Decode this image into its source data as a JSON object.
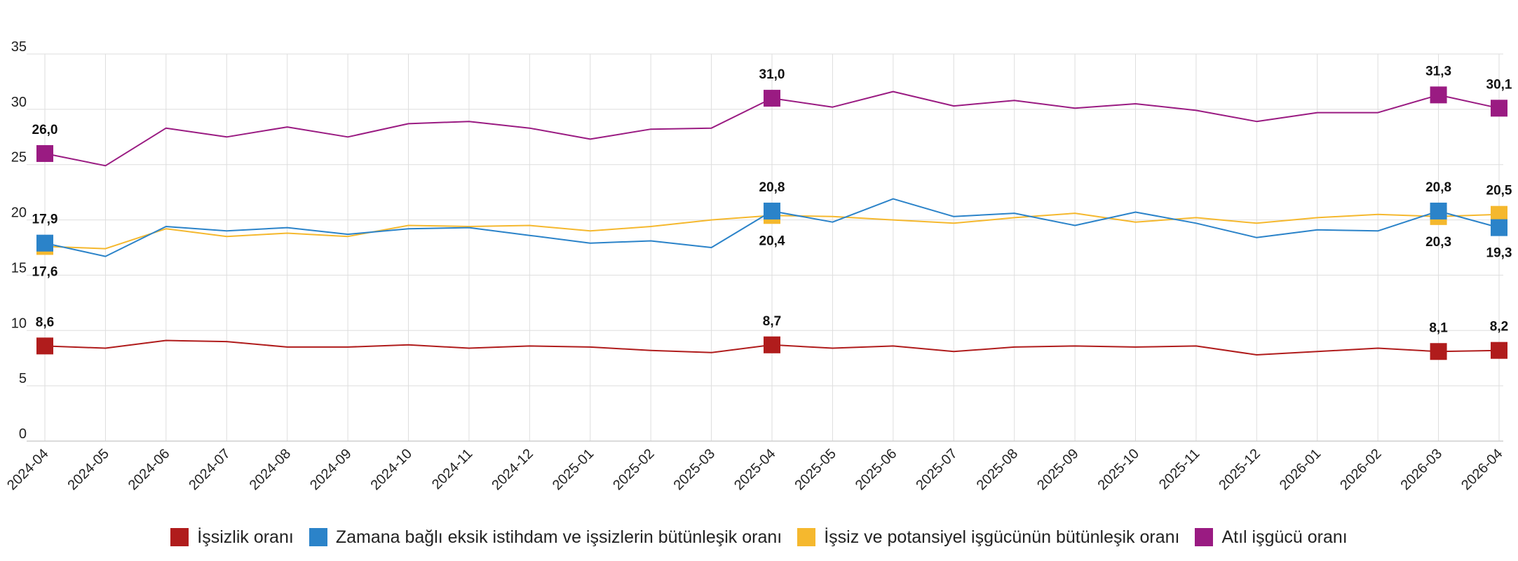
{
  "chart_data": {
    "type": "line",
    "title": "",
    "xlabel": "",
    "ylabel": "",
    "ylim": [
      0,
      35
    ],
    "yticks": [
      "0",
      "5",
      "10",
      "15",
      "20",
      "25",
      "30",
      "35"
    ],
    "grid": true,
    "legend_position": "bottom-center",
    "categories": [
      "2024-04",
      "2024-05",
      "2024-06",
      "2024-07",
      "2024-08",
      "2024-09",
      "2024-10",
      "2024-11",
      "2024-12",
      "2025-01",
      "2025-02",
      "2025-03",
      "2025-04",
      "2025-05",
      "2025-06",
      "2025-07",
      "2025-08",
      "2025-09",
      "2025-10",
      "2025-11",
      "2025-12",
      "2026-01",
      "2026-02",
      "2026-03",
      "2026-04"
    ],
    "series": [
      {
        "key": "unemployment",
        "name": "İşsizlik oranı",
        "color": "#b01c1c",
        "values": [
          8.6,
          8.4,
          9.1,
          9.0,
          8.5,
          8.5,
          8.7,
          8.4,
          8.6,
          8.5,
          8.2,
          8.0,
          8.7,
          8.4,
          8.6,
          8.1,
          8.5,
          8.6,
          8.5,
          8.6,
          7.8,
          8.1,
          8.4,
          8.1,
          8.2
        ],
        "labels": [
          {
            "index": 0,
            "text": "8,6",
            "pos": "above"
          },
          {
            "index": 12,
            "text": "8,7",
            "pos": "above"
          },
          {
            "index": 23,
            "text": "8,1",
            "pos": "above"
          },
          {
            "index": 24,
            "text": "8,2",
            "pos": "above"
          }
        ]
      },
      {
        "key": "time_related",
        "name": "Zamana bağlı eksik istihdam ve işsizlerin bütünleşik oranı",
        "color": "#2b83c9",
        "values": [
          17.9,
          16.7,
          19.4,
          19.0,
          19.3,
          18.7,
          19.2,
          19.3,
          18.6,
          17.9,
          18.1,
          17.5,
          20.8,
          19.8,
          21.9,
          20.3,
          20.6,
          19.5,
          20.7,
          19.7,
          18.4,
          19.1,
          19.0,
          20.8,
          19.3
        ],
        "labels": [
          {
            "index": 0,
            "text": "17,9",
            "pos": "above"
          },
          {
            "index": 12,
            "text": "20,8",
            "pos": "above"
          },
          {
            "index": 23,
            "text": "20,8",
            "pos": "above"
          },
          {
            "index": 24,
            "text": "19,3",
            "pos": "below"
          }
        ]
      },
      {
        "key": "potential_labour",
        "name": "İşsiz ve potansiyel işgücünün bütünleşik oranı",
        "color": "#f5b82e",
        "values": [
          17.6,
          17.4,
          19.2,
          18.5,
          18.8,
          18.5,
          19.5,
          19.4,
          19.5,
          19.0,
          19.4,
          20.0,
          20.4,
          20.3,
          20.0,
          19.7,
          20.2,
          20.6,
          19.8,
          20.2,
          19.7,
          20.2,
          20.5,
          20.3,
          20.5
        ],
        "labels": [
          {
            "index": 0,
            "text": "17,6",
            "pos": "below"
          },
          {
            "index": 12,
            "text": "20,4",
            "pos": "below"
          },
          {
            "index": 23,
            "text": "20,3",
            "pos": "below"
          },
          {
            "index": 24,
            "text": "20,5",
            "pos": "above"
          }
        ]
      },
      {
        "key": "underutilization",
        "name": "Atıl işgücü oranı",
        "color": "#9a1b82",
        "values": [
          26.0,
          24.9,
          28.3,
          27.5,
          28.4,
          27.5,
          28.7,
          28.9,
          28.3,
          27.3,
          28.2,
          28.3,
          31.0,
          30.2,
          31.6,
          30.3,
          30.8,
          30.1,
          30.5,
          29.9,
          28.9,
          29.7,
          29.7,
          31.3,
          30.1
        ],
        "labels": [
          {
            "index": 0,
            "text": "26,0",
            "pos": "above"
          },
          {
            "index": 12,
            "text": "31,0",
            "pos": "above"
          },
          {
            "index": 23,
            "text": "31,3",
            "pos": "above"
          },
          {
            "index": 24,
            "text": "30,1",
            "pos": "above"
          }
        ]
      }
    ],
    "marker_indices": [
      0,
      12,
      23,
      24
    ],
    "draw_order": [
      "potential_labour",
      "time_related",
      "unemployment",
      "underutilization"
    ]
  }
}
